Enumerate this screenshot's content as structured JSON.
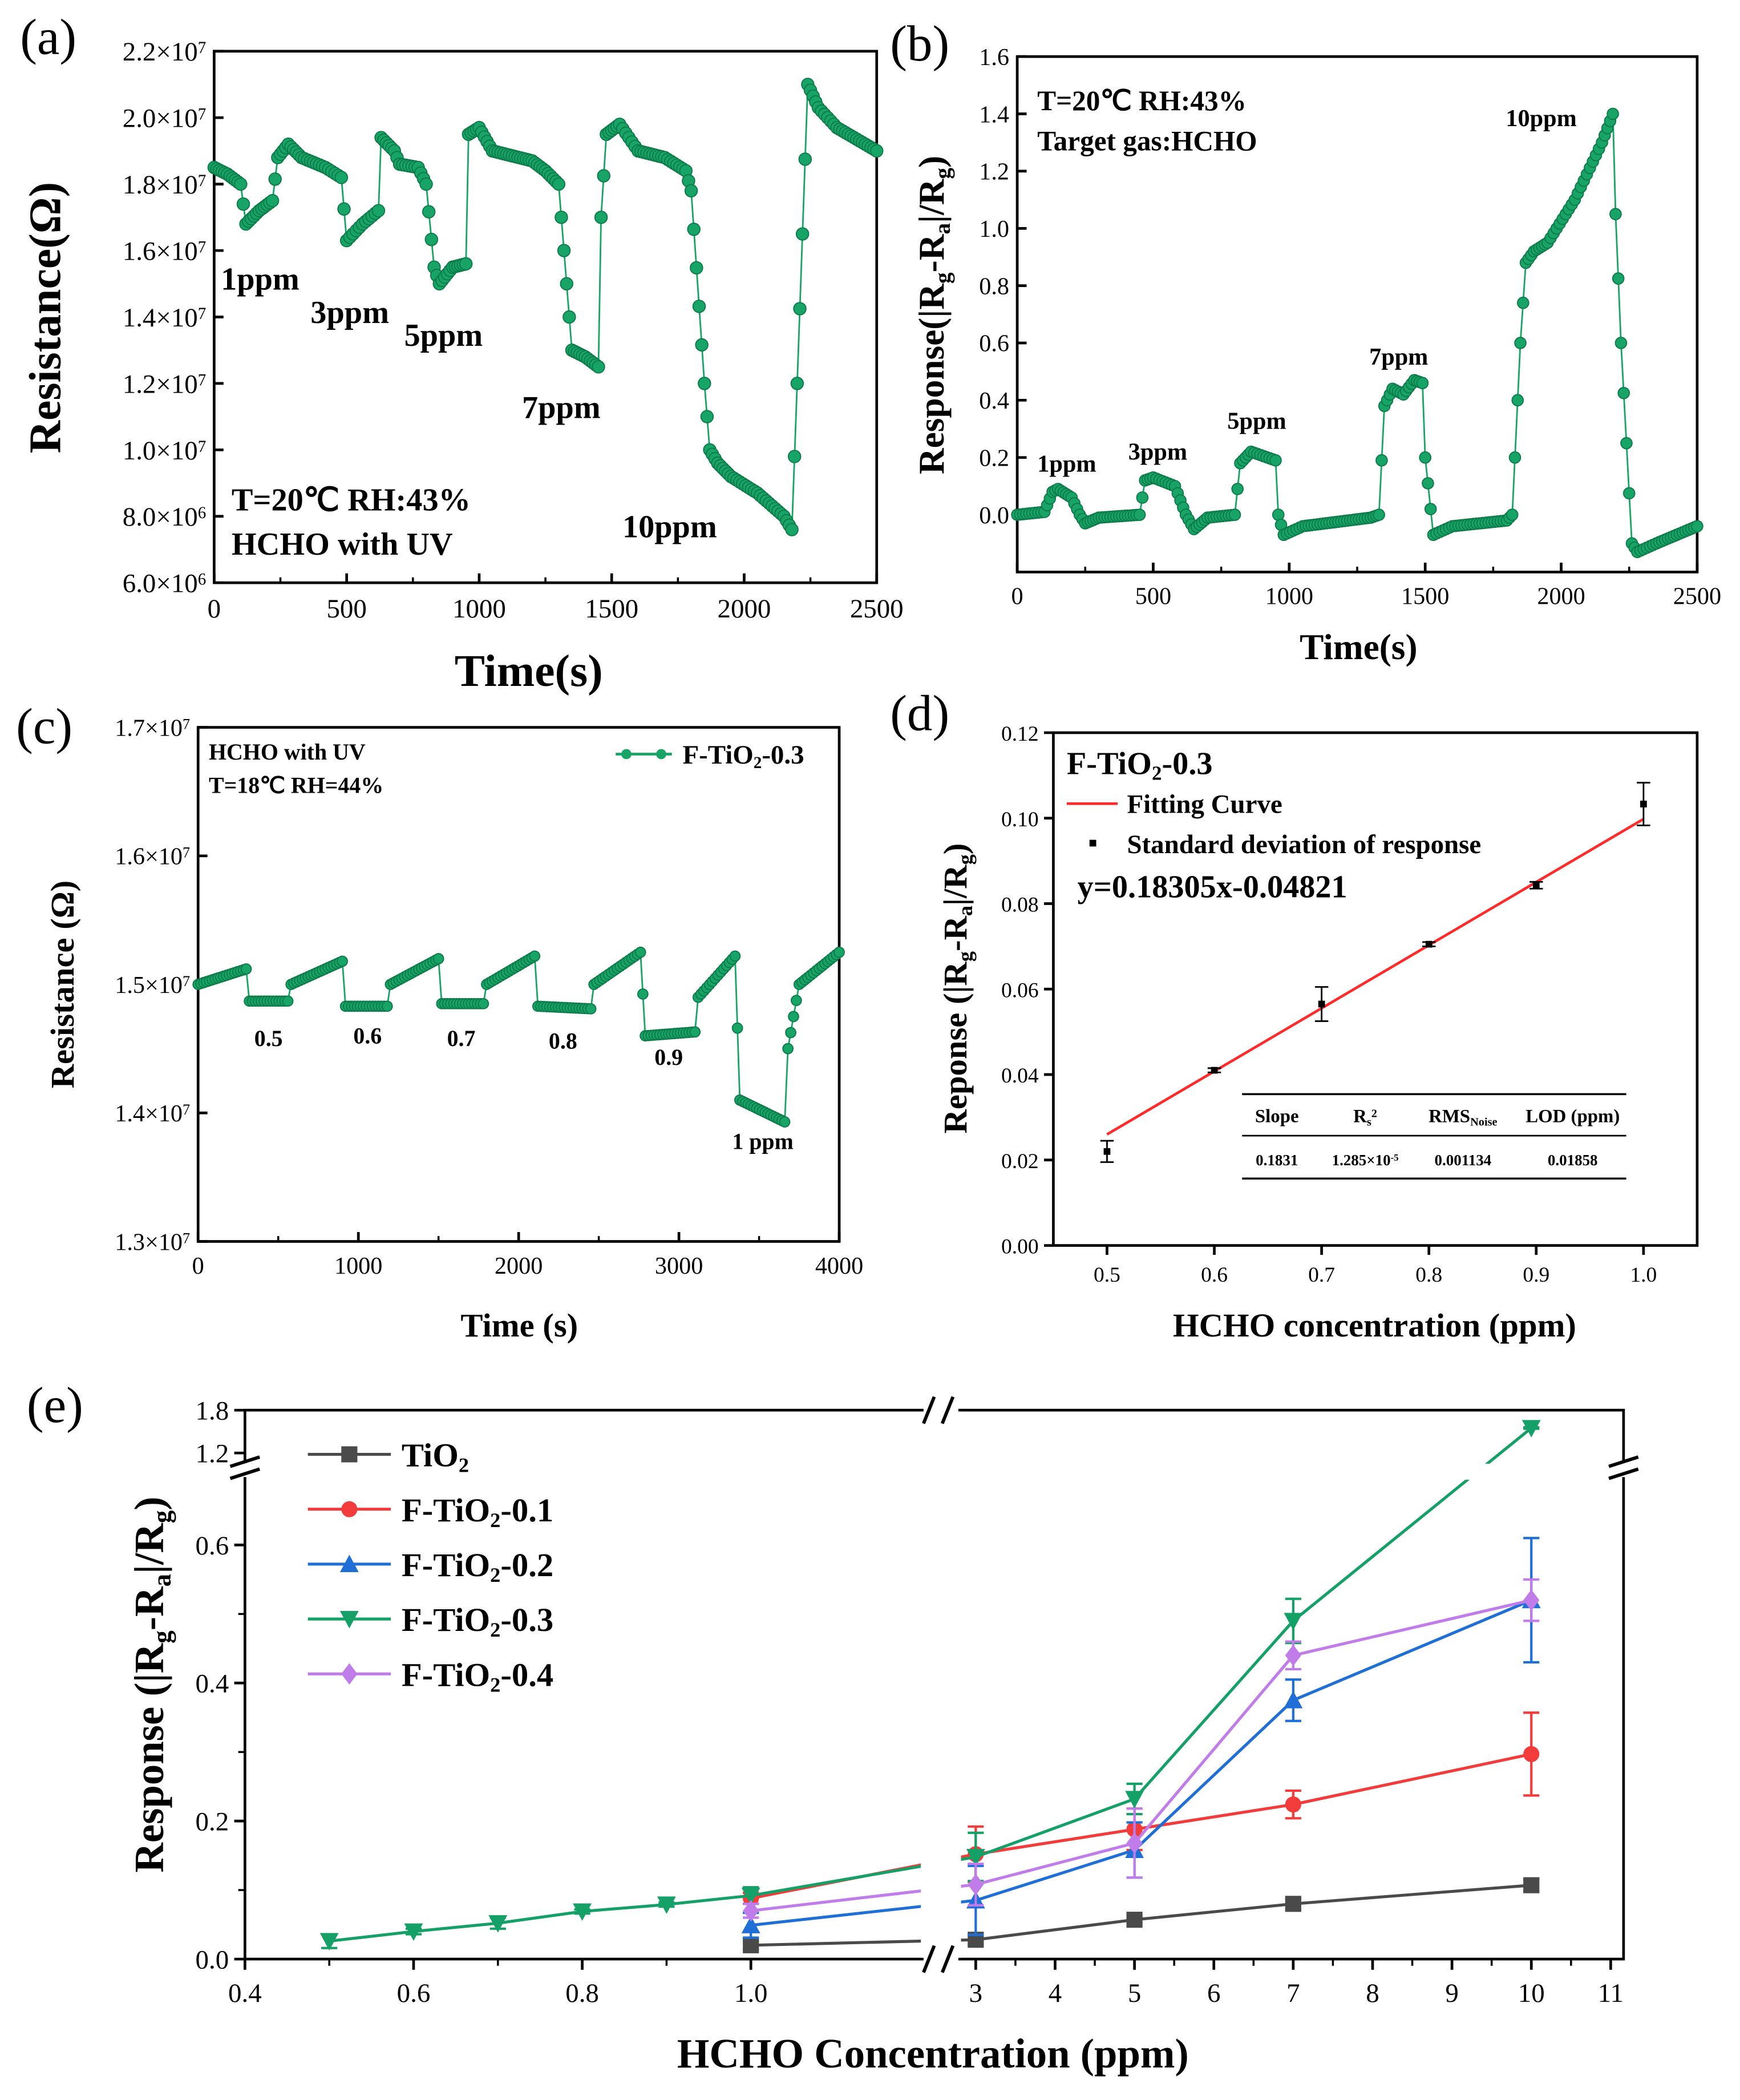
{
  "chart_data": [
    {
      "id": "a",
      "panel_label": "(a)",
      "type": "scatter-line",
      "xlabel": "Time(s)",
      "ylabel": "Resistance(Ω)",
      "xlim": [
        0,
        2500
      ],
      "ylim": [
        6000000,
        22000000
      ],
      "xticks": [
        0,
        500,
        1000,
        1500,
        2000,
        2500
      ],
      "yticks": [
        6000000,
        8000000,
        10000000,
        12000000,
        14000000,
        16000000,
        18000000,
        20000000,
        22000000
      ],
      "ytick_labels": [
        "6.0×10^{6}",
        "8.0×10^{6}",
        "1.0×10^{7}",
        "1.2×10^{7}",
        "1.4×10^{7}",
        "1.6×10^{7}",
        "1.8×10^{7}",
        "2.0×10^{7}",
        "2.2×10^{7}"
      ],
      "color": "#18a466",
      "series_unit": 10000000,
      "series": [
        [
          0,
          1.85
        ],
        [
          50,
          1.83
        ],
        [
          100,
          1.8
        ],
        [
          120,
          1.68
        ],
        [
          170,
          1.72
        ],
        [
          220,
          1.75
        ],
        [
          240,
          1.88
        ],
        [
          280,
          1.92
        ],
        [
          330,
          1.88
        ],
        [
          420,
          1.85
        ],
        [
          480,
          1.82
        ],
        [
          500,
          1.63
        ],
        [
          560,
          1.68
        ],
        [
          620,
          1.72
        ],
        [
          630,
          1.94
        ],
        [
          680,
          1.9
        ],
        [
          700,
          1.86
        ],
        [
          770,
          1.85
        ],
        [
          800,
          1.8
        ],
        [
          830,
          1.55
        ],
        [
          850,
          1.5
        ],
        [
          900,
          1.55
        ],
        [
          950,
          1.56
        ],
        [
          960,
          1.95
        ],
        [
          1000,
          1.97
        ],
        [
          1050,
          1.9
        ],
        [
          1200,
          1.87
        ],
        [
          1250,
          1.84
        ],
        [
          1300,
          1.8
        ],
        [
          1330,
          1.5
        ],
        [
          1350,
          1.3
        ],
        [
          1400,
          1.28
        ],
        [
          1450,
          1.25
        ],
        [
          1460,
          1.7
        ],
        [
          1480,
          1.95
        ],
        [
          1530,
          1.98
        ],
        [
          1600,
          1.9
        ],
        [
          1700,
          1.88
        ],
        [
          1780,
          1.84
        ],
        [
          1800,
          1.78
        ],
        [
          1850,
          1.2
        ],
        [
          1870,
          1.0
        ],
        [
          1900,
          0.96
        ],
        [
          1950,
          0.92
        ],
        [
          2050,
          0.87
        ],
        [
          2150,
          0.8
        ],
        [
          2180,
          0.76
        ],
        [
          2200,
          1.2
        ],
        [
          2240,
          2.1
        ],
        [
          2280,
          2.03
        ],
        [
          2350,
          1.97
        ],
        [
          2500,
          1.9
        ]
      ],
      "annotations": [
        "1ppm",
        "3ppm",
        "5ppm",
        "7ppm",
        "10ppm"
      ],
      "notes": [
        "T=20℃ RH:43%",
        "HCHO with UV"
      ]
    },
    {
      "id": "b",
      "panel_label": "(b)",
      "type": "scatter-line",
      "xlabel": "Time(s)",
      "ylabel": "Response(|R_{g}-R_{a}|/R_{g})",
      "xlim": [
        0,
        2500
      ],
      "ylim": [
        -0.2,
        1.6
      ],
      "xticks": [
        0,
        500,
        1000,
        1500,
        2000,
        2500
      ],
      "yticks": [
        0.0,
        0.2,
        0.4,
        0.6,
        0.8,
        1.0,
        1.2,
        1.4,
        1.6
      ],
      "ytick_labels": [
        "0.0",
        "0.2",
        "0.4",
        "0.6",
        "0.8",
        "1.0",
        "1.2",
        "1.4",
        "1.6"
      ],
      "color": "#18a466",
      "series_unit": 1,
      "series": [
        [
          0,
          0
        ],
        [
          100,
          0.01
        ],
        [
          130,
          0.08
        ],
        [
          150,
          0.09
        ],
        [
          200,
          0.06
        ],
        [
          230,
          0.0
        ],
        [
          250,
          -0.03
        ],
        [
          300,
          -0.01
        ],
        [
          450,
          0.0
        ],
        [
          470,
          0.12
        ],
        [
          500,
          0.13
        ],
        [
          580,
          0.1
        ],
        [
          620,
          0.0
        ],
        [
          650,
          -0.05
        ],
        [
          700,
          -0.01
        ],
        [
          800,
          0.0
        ],
        [
          820,
          0.18
        ],
        [
          860,
          0.22
        ],
        [
          950,
          0.19
        ],
        [
          960,
          0.0
        ],
        [
          980,
          -0.07
        ],
        [
          1050,
          -0.04
        ],
        [
          1300,
          -0.01
        ],
        [
          1330,
          0.0
        ],
        [
          1350,
          0.38
        ],
        [
          1380,
          0.44
        ],
        [
          1420,
          0.42
        ],
        [
          1460,
          0.47
        ],
        [
          1490,
          0.46
        ],
        [
          1500,
          0.2
        ],
        [
          1530,
          -0.07
        ],
        [
          1600,
          -0.04
        ],
        [
          1800,
          -0.02
        ],
        [
          1820,
          0.0
        ],
        [
          1850,
          0.6
        ],
        [
          1870,
          0.88
        ],
        [
          1900,
          0.92
        ],
        [
          1950,
          0.95
        ],
        [
          2050,
          1.1
        ],
        [
          2150,
          1.3
        ],
        [
          2190,
          1.4
        ],
        [
          2200,
          1.05
        ],
        [
          2220,
          0.6
        ],
        [
          2260,
          -0.1
        ],
        [
          2280,
          -0.13
        ],
        [
          2350,
          -0.1
        ],
        [
          2500,
          -0.04
        ]
      ],
      "annotations": [
        "1ppm",
        "3ppm",
        "5ppm",
        "7ppm",
        "10ppm"
      ],
      "notes": [
        "T=20℃ RH:43%",
        "Target gas:HCHO"
      ]
    },
    {
      "id": "c",
      "panel_label": "(c)",
      "type": "scatter-line",
      "xlabel": "Time (s)",
      "ylabel": "Resistance (Ω)",
      "xlim": [
        0,
        4000
      ],
      "ylim": [
        13000000,
        17000000
      ],
      "xticks": [
        0,
        1000,
        2000,
        3000,
        4000
      ],
      "yticks": [
        13000000,
        14000000,
        15000000,
        16000000,
        17000000
      ],
      "ytick_labels": [
        "1.3×10^{7}",
        "1.4×10^{7}",
        "1.5×10^{7}",
        "1.6×10^{7}",
        "1.7×10^{7}"
      ],
      "color": "#18a466",
      "series_unit": 10000000,
      "series": [
        [
          0,
          1.5
        ],
        [
          300,
          1.512
        ],
        [
          320,
          1.487
        ],
        [
          560,
          1.487
        ],
        [
          580,
          1.5
        ],
        [
          900,
          1.518
        ],
        [
          920,
          1.483
        ],
        [
          1180,
          1.483
        ],
        [
          1200,
          1.5
        ],
        [
          1500,
          1.52
        ],
        [
          1520,
          1.485
        ],
        [
          1780,
          1.485
        ],
        [
          1800,
          1.5
        ],
        [
          2100,
          1.522
        ],
        [
          2120,
          1.483
        ],
        [
          2450,
          1.481
        ],
        [
          2470,
          1.5
        ],
        [
          2760,
          1.525
        ],
        [
          2790,
          1.46
        ],
        [
          3100,
          1.463
        ],
        [
          3120,
          1.49
        ],
        [
          3350,
          1.522
        ],
        [
          3380,
          1.41
        ],
        [
          3660,
          1.393
        ],
        [
          3680,
          1.45
        ],
        [
          3750,
          1.5
        ],
        [
          4000,
          1.525
        ]
      ],
      "legend": [
        "F-TiO_{2}-0.3"
      ],
      "annotations": [
        "0.5",
        "0.6",
        "0.7",
        "0.8",
        "0.9",
        "1 ppm"
      ],
      "notes": [
        "HCHO with UV",
        "T=18℃ RH=44%"
      ]
    },
    {
      "id": "d",
      "panel_label": "(d)",
      "type": "scatter",
      "xlabel": "HCHO concentration (ppm)",
      "ylabel": "Reponse (|R_{g}-R_{a}|/R_{g})",
      "xlim": [
        0.45,
        1.05
      ],
      "ylim": [
        0,
        0.12
      ],
      "xticks": [
        0.5,
        0.6,
        0.7,
        0.8,
        0.9,
        1.0
      ],
      "xtick_labels": [
        "0.5",
        "0.6",
        "0.7",
        "0.8",
        "0.9",
        "1.0"
      ],
      "yticks": [
        0,
        0.02,
        0.04,
        0.06,
        0.08,
        0.1,
        0.12
      ],
      "ytick_labels": [
        "0.00",
        "0.02",
        "0.04",
        "0.06",
        "0.08",
        "0.10",
        "0.12"
      ],
      "x": [
        0.5,
        0.6,
        0.7,
        0.8,
        0.9,
        1.0
      ],
      "y": [
        0.022,
        0.041,
        0.0565,
        0.0705,
        0.0843,
        0.1033
      ],
      "err": [
        0.0025,
        0.0005,
        0.004,
        0.0005,
        0.0008,
        0.005
      ],
      "fit_line": [
        [
          0.5,
          0.026
        ],
        [
          1.0,
          0.0998
        ]
      ],
      "fit_color": "#ff2a2a",
      "title": "F-TiO_{2}-0.3",
      "legend": [
        "Fitting Curve",
        "Standard deviation of response"
      ],
      "equation": "y=0.18305x-0.04821",
      "table": {
        "headers": [
          "Slope",
          "R_{s}^{2}",
          "RMS_{Noise}",
          "LOD (ppm)"
        ],
        "row": [
          "0.1831",
          "1.285×10^{-5}",
          "0.001134",
          "0.01858"
        ]
      }
    },
    {
      "id": "e",
      "panel_label": "(e)",
      "type": "line",
      "xlabel": "HCHO Concentration (ppm)",
      "ylabel": "Response (|R_{g}-R_{a}|/R_{g})",
      "xticks": [
        0.4,
        0.6,
        0.8,
        1.0,
        3,
        4,
        5,
        6,
        7,
        8,
        9,
        10,
        11
      ],
      "xtick_labels": [
        "0.4",
        "0.6",
        "0.8",
        "1.0",
        "3",
        "4",
        "5",
        "6",
        "7",
        "8",
        "9",
        "10",
        "11"
      ],
      "yticks": [
        0.0,
        0.2,
        0.4,
        0.6,
        1.2,
        1.8
      ],
      "ytick_labels": [
        "0.0",
        "0.2",
        "0.4",
        "0.6",
        "1.2",
        "1.8"
      ],
      "x_break": [
        1.2,
        2.6
      ],
      "y_break": [
        0.7,
        1.1
      ],
      "series": [
        {
          "name": "TiO_{2}",
          "color": "#4a4a4a",
          "marker": "square",
          "x": [
            1,
            3,
            5,
            7,
            10
          ],
          "y": [
            0.02,
            0.028,
            0.057,
            0.08,
            0.107
          ],
          "err": [
            0.006,
            0.007,
            0.005,
            0.008,
            0.008
          ]
        },
        {
          "name": "F-TiO_{2}-0.1",
          "color": "#f23b3b",
          "marker": "circle",
          "x": [
            1,
            3,
            5,
            7,
            10
          ],
          "y": [
            0.088,
            0.152,
            0.188,
            0.224,
            0.297
          ],
          "err": [
            0.008,
            0.04,
            0.03,
            0.02,
            0.06
          ]
        },
        {
          "name": "F-TiO_{2}-0.2",
          "color": "#1f6fd6",
          "marker": "triangle-up",
          "x": [
            1,
            3,
            5,
            7,
            10
          ],
          "y": [
            0.049,
            0.085,
            0.158,
            0.375,
            0.52
          ],
          "err": [
            0.018,
            0.05,
            0.04,
            0.03,
            0.09
          ]
        },
        {
          "name": "F-TiO_{2}-0.3",
          "color": "#14a067",
          "marker": "triangle-down",
          "x": [
            0.5,
            0.6,
            0.7,
            0.8,
            0.9,
            1,
            3,
            5,
            7,
            10
          ],
          "y": [
            0.026,
            0.04,
            0.052,
            0.069,
            0.079,
            0.092,
            0.148,
            0.232,
            0.49,
            1.55
          ],
          "err": [
            0.01,
            0.004,
            0.008,
            0.003,
            0.003,
            0.012,
            0.035,
            0.022,
            0.032,
            0.01
          ]
        },
        {
          "name": "F-TiO_{2}-0.4",
          "color": "#c07ce8",
          "marker": "diamond",
          "x": [
            1,
            3,
            5,
            7,
            10
          ],
          "y": [
            0.07,
            0.108,
            0.168,
            0.44,
            0.52
          ],
          "err": [
            0.01,
            0.03,
            0.05,
            0.02,
            0.03
          ]
        }
      ],
      "legend_position": "top-left"
    }
  ]
}
